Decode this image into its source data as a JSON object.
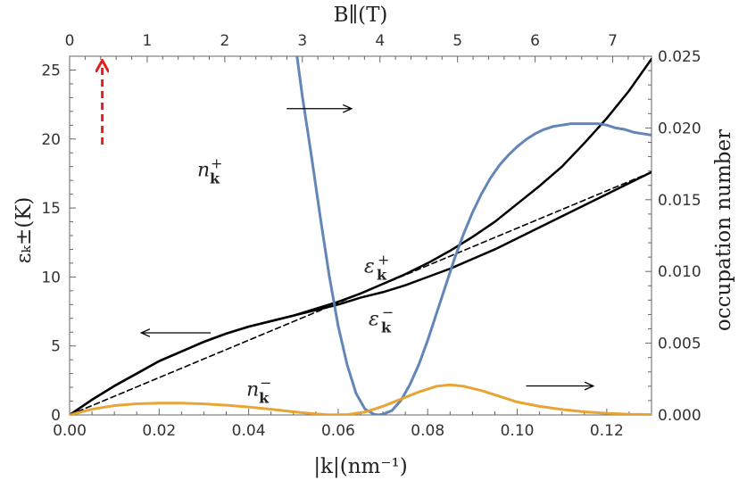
{
  "chart_data": {
    "type": "line",
    "title": "",
    "xlabel": "|k|(nm⁻¹)",
    "ylabel_left": "εₖ±(K)",
    "ylabel_right": "occupation number",
    "xlabel_top": "B∥(T)",
    "xlim": [
      0,
      0.13
    ],
    "ylim_left": [
      0,
      26
    ],
    "ylim_right": [
      0,
      0.025
    ],
    "xlim_top": [
      0,
      7.5
    ],
    "grid": false,
    "x_ticks": [
      "0.00",
      "0.02",
      "0.04",
      "0.06",
      "0.08",
      "0.10",
      "0.12"
    ],
    "x_tick_values": [
      0,
      0.02,
      0.04,
      0.06,
      0.08,
      0.1,
      0.12
    ],
    "y_ticks_left": [
      "0",
      "5",
      "10",
      "15",
      "20",
      "25"
    ],
    "y_tick_values_left": [
      0,
      5,
      10,
      15,
      20,
      25
    ],
    "y_ticks_right": [
      "0.000",
      "0.005",
      "0.010",
      "0.015",
      "0.020",
      "0.025"
    ],
    "y_tick_values_right": [
      0,
      0.005,
      0.01,
      0.015,
      0.02,
      0.025
    ],
    "x_ticks_top": [
      "0",
      "1",
      "2",
      "3",
      "4",
      "5",
      "6",
      "7"
    ],
    "x_tick_values_top": [
      0,
      1,
      2,
      3,
      4,
      5,
      6,
      7
    ],
    "series": [
      {
        "name": "εₖ⁺",
        "axis": "left",
        "color": "#000000",
        "style": "solid",
        "x": [
          0,
          0.005,
          0.01,
          0.015,
          0.02,
          0.025,
          0.03,
          0.035,
          0.04,
          0.045,
          0.05,
          0.055,
          0.06,
          0.065,
          0.07,
          0.075,
          0.08,
          0.085,
          0.09,
          0.095,
          0.1,
          0.105,
          0.11,
          0.115,
          0.12,
          0.125,
          0.13
        ],
        "y": [
          0,
          1.1,
          2.1,
          3.0,
          3.9,
          4.6,
          5.3,
          5.9,
          6.4,
          6.8,
          7.2,
          7.7,
          8.2,
          8.8,
          9.5,
          10.2,
          11.0,
          11.9,
          12.9,
          14.0,
          15.3,
          16.6,
          18.0,
          19.7,
          21.5,
          23.5,
          25.8
        ]
      },
      {
        "name": "εₖ⁻",
        "axis": "left",
        "color": "#000000",
        "style": "solid",
        "x": [
          0,
          0.005,
          0.01,
          0.015,
          0.02,
          0.025,
          0.03,
          0.035,
          0.04,
          0.045,
          0.05,
          0.055,
          0.06,
          0.065,
          0.07,
          0.075,
          0.08,
          0.085,
          0.09,
          0.095,
          0.1,
          0.105,
          0.11,
          0.115,
          0.12,
          0.125,
          0.13
        ],
        "y": [
          0,
          1.1,
          2.1,
          3.0,
          3.9,
          4.6,
          5.3,
          5.9,
          6.4,
          6.8,
          7.2,
          7.6,
          8.0,
          8.5,
          8.9,
          9.4,
          10.0,
          10.6,
          11.3,
          12.0,
          12.8,
          13.6,
          14.4,
          15.2,
          16.0,
          16.8,
          17.6
        ]
      },
      {
        "name": "",
        "axis": "left",
        "color": "#000000",
        "style": "dashed",
        "x": [
          0,
          0.13
        ],
        "y": [
          0,
          17.6
        ]
      },
      {
        "name": "nₖ⁺",
        "axis": "right",
        "color": "#5b7fb5",
        "style": "solid",
        "x": [
          0.0508,
          0.052,
          0.054,
          0.056,
          0.058,
          0.06,
          0.062,
          0.064,
          0.066,
          0.068,
          0.069,
          0.07,
          0.072,
          0.074,
          0.076,
          0.078,
          0.08,
          0.082,
          0.084,
          0.086,
          0.088,
          0.09,
          0.092,
          0.094,
          0.096,
          0.098,
          0.1,
          0.102,
          0.104,
          0.106,
          0.108,
          0.11,
          0.112,
          0.114,
          0.116,
          0.118,
          0.12,
          0.122,
          0.124,
          0.126,
          0.128,
          0.13
        ],
        "y": [
          0.025,
          0.0222,
          0.0181,
          0.0138,
          0.0097,
          0.0062,
          0.0035,
          0.0015,
          0.0004,
          5e-05,
          0.0,
          5e-05,
          0.0003,
          0.001,
          0.0021,
          0.0035,
          0.0052,
          0.0071,
          0.009,
          0.0109,
          0.0126,
          0.0141,
          0.0154,
          0.0165,
          0.0174,
          0.0181,
          0.0187,
          0.0192,
          0.0196,
          0.0199,
          0.0201,
          0.0202,
          0.0203,
          0.0203,
          0.0203,
          0.0203,
          0.0202,
          0.02,
          0.0199,
          0.0197,
          0.0196,
          0.0195
        ]
      },
      {
        "name": "nₖ⁻",
        "axis": "right",
        "color": "#e6a02a",
        "style": "solid",
        "x": [
          0,
          0.005,
          0.01,
          0.015,
          0.02,
          0.025,
          0.03,
          0.035,
          0.04,
          0.045,
          0.05,
          0.055,
          0.058,
          0.062,
          0.066,
          0.07,
          0.074,
          0.078,
          0.082,
          0.085,
          0.088,
          0.092,
          0.096,
          0.1,
          0.105,
          0.11,
          0.115,
          0.12,
          0.125,
          0.13
        ],
        "y": [
          0.0,
          0.0004,
          0.00065,
          0.00078,
          0.00082,
          0.00082,
          0.00077,
          0.00068,
          0.00055,
          0.0004,
          0.00022,
          7e-05,
          1e-05,
          2e-05,
          0.0002,
          0.0006,
          0.0011,
          0.0016,
          0.002,
          0.0021,
          0.002,
          0.0017,
          0.0013,
          0.0009,
          0.0006,
          0.00038,
          0.00022,
          0.00012,
          5e-05,
          2e-05
        ]
      }
    ],
    "annotations": [
      {
        "id": "n_plus",
        "base": "n",
        "sub": "k",
        "sup": "+",
        "x": 0.0285,
        "y_left": 17.3
      },
      {
        "id": "n_minus",
        "base": "n",
        "sub": "k",
        "sup": "−",
        "x": 0.0395,
        "y_left": 1.4
      },
      {
        "id": "eps_plus",
        "base": "ε",
        "sub": "k",
        "sup": "+",
        "x": 0.0658,
        "y_left": 10.3
      },
      {
        "id": "eps_minus",
        "base": "ε",
        "sub": "k",
        "sup": "−",
        "x": 0.0668,
        "y_left": 6.5
      }
    ],
    "arrows": [
      {
        "id": "arrow-left",
        "x1": 0.0315,
        "y1": 5.95,
        "x2": 0.016,
        "y2": 5.95,
        "color": "#000000",
        "style": "solid"
      },
      {
        "id": "arrow-right-top",
        "x1": 0.0485,
        "y1": 22.2,
        "x2": 0.063,
        "y2": 22.2,
        "color": "#000000",
        "style": "solid"
      },
      {
        "id": "arrow-right-bottom",
        "x1": 0.102,
        "y1": 2.1,
        "x2": 0.117,
        "y2": 2.1,
        "color": "#000000",
        "style": "solid"
      },
      {
        "id": "arrow-red",
        "x1": 0.0073,
        "y1": 19.6,
        "x2": 0.0073,
        "y2": 25.6,
        "color": "#e32020",
        "style": "dashed"
      }
    ]
  }
}
